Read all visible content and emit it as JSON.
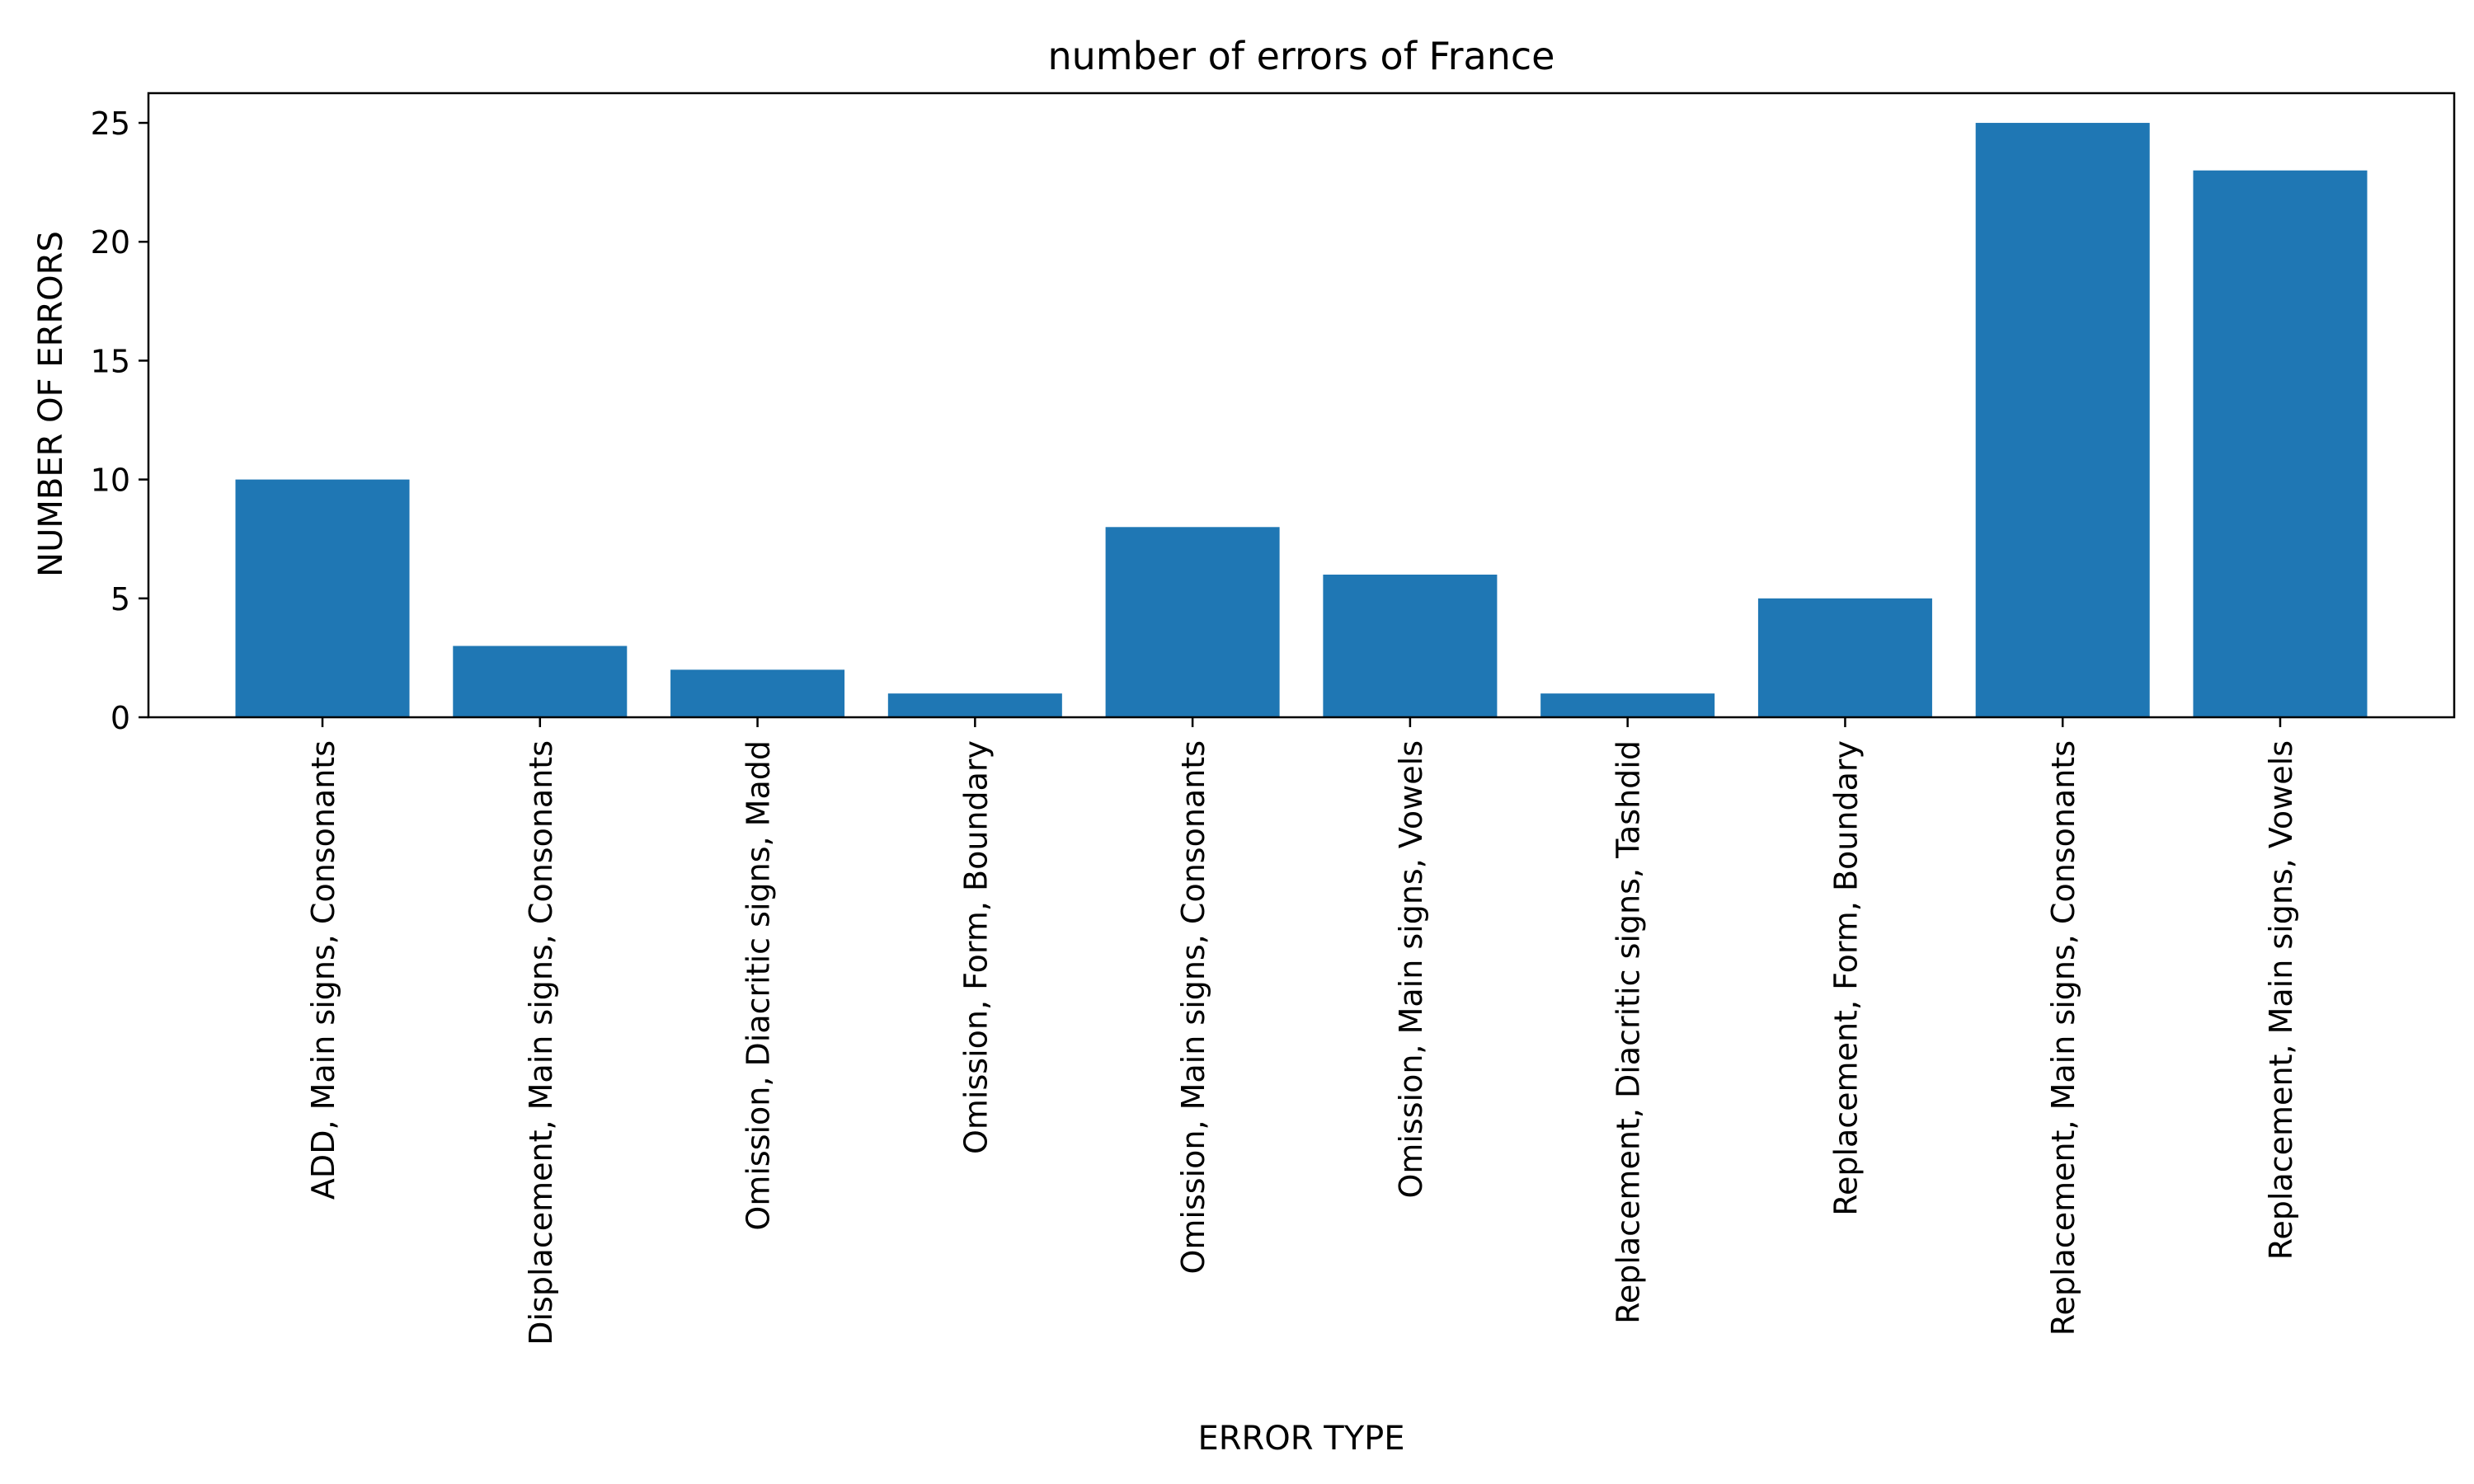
{
  "chart_data": {
    "type": "bar",
    "title": "number of errors of France",
    "xlabel": "ERROR TYPE",
    "ylabel": "NUMBER OF ERRORS",
    "categories": [
      "ADD, Main signs, Consonants",
      "Displacement, Main signs, Consonants",
      "Omission, Diacritic signs, Madd",
      "Omission, Form, Boundary",
      "Omission, Main signs, Consonants",
      "Omission, Main signs, Vowels",
      "Replacement, Diacritic signs, Tashdid",
      "Replacement, Form, Boundary",
      "Replacement, Main signs, Consonants",
      "Replacement, Main signs, Vowels"
    ],
    "values": [
      10,
      3,
      2,
      1,
      8,
      6,
      1,
      5,
      25,
      23
    ],
    "ylim": [
      0,
      26.25
    ],
    "yticks": [
      0,
      5,
      10,
      15,
      20,
      25
    ],
    "grid": false,
    "legend": "none",
    "bar_color": "#1f77b4"
  }
}
